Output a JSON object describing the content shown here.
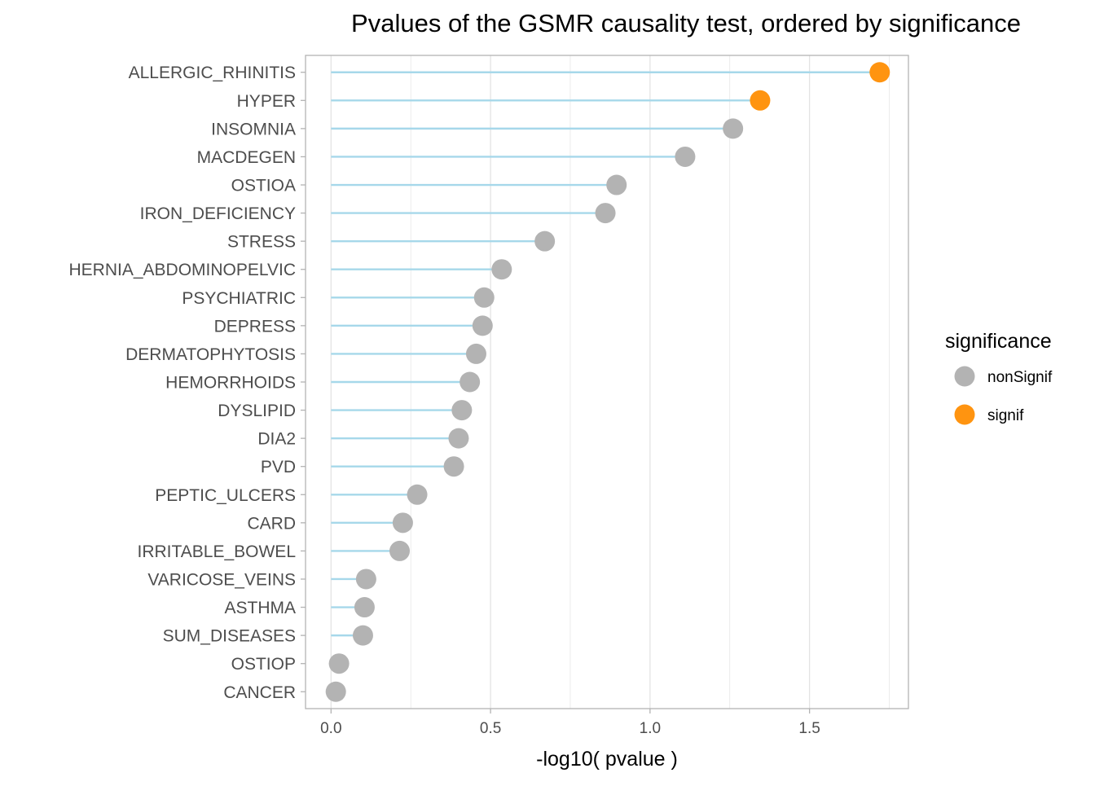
{
  "chart_data": {
    "type": "lollipop",
    "title": "Pvalues of the GSMR causality test, ordered by significance",
    "xlabel": "-log10( pvalue )",
    "ylabel": "",
    "xlim": [
      -0.08,
      1.81
    ],
    "xticks": [
      0.0,
      0.5,
      1.0,
      1.5
    ],
    "xtick_labels": [
      "0.0",
      "0.5",
      "1.0",
      "1.5"
    ],
    "grid": true,
    "legend": {
      "title": "significance",
      "position": "right",
      "entries": [
        {
          "label": "nonSignif",
          "color": "#b3b3b3"
        },
        {
          "label": "signif",
          "color": "#ff9410"
        }
      ]
    },
    "categories": [
      "ALLERGIC_RHINITIS",
      "HYPER",
      "INSOMNIA",
      "MACDEGEN",
      "OSTIOA",
      "IRON_DEFICIENCY",
      "STRESS",
      "HERNIA_ABDOMINOPELVIC",
      "PSYCHIATRIC",
      "DEPRESS",
      "DERMATOPHYTOSIS",
      "HEMORRHOIDS",
      "DYSLIPID",
      "DIA2",
      "PVD",
      "PEPTIC_ULCERS",
      "CARD",
      "IRRITABLE_BOWEL",
      "VARICOSE_VEINS",
      "ASTHMA",
      "SUM_DISEASES",
      "OSTIOP",
      "CANCER"
    ],
    "values": [
      1.72,
      1.345,
      1.26,
      1.11,
      0.895,
      0.86,
      0.67,
      0.535,
      0.48,
      0.475,
      0.455,
      0.435,
      0.41,
      0.4,
      0.385,
      0.27,
      0.225,
      0.215,
      0.11,
      0.105,
      0.1,
      0.025,
      0.015
    ],
    "groups": [
      "signif",
      "signif",
      "nonSignif",
      "nonSignif",
      "nonSignif",
      "nonSignif",
      "nonSignif",
      "nonSignif",
      "nonSignif",
      "nonSignif",
      "nonSignif",
      "nonSignif",
      "nonSignif",
      "nonSignif",
      "nonSignif",
      "nonSignif",
      "nonSignif",
      "nonSignif",
      "nonSignif",
      "nonSignif",
      "nonSignif",
      "nonSignif",
      "nonSignif"
    ],
    "colors": {
      "stem": "#a6d8ea",
      "nonSignif": "#b3b3b3",
      "signif": "#ff9410",
      "grid": "#e3e3e3",
      "panel_border": "#b3b3b3"
    }
  }
}
